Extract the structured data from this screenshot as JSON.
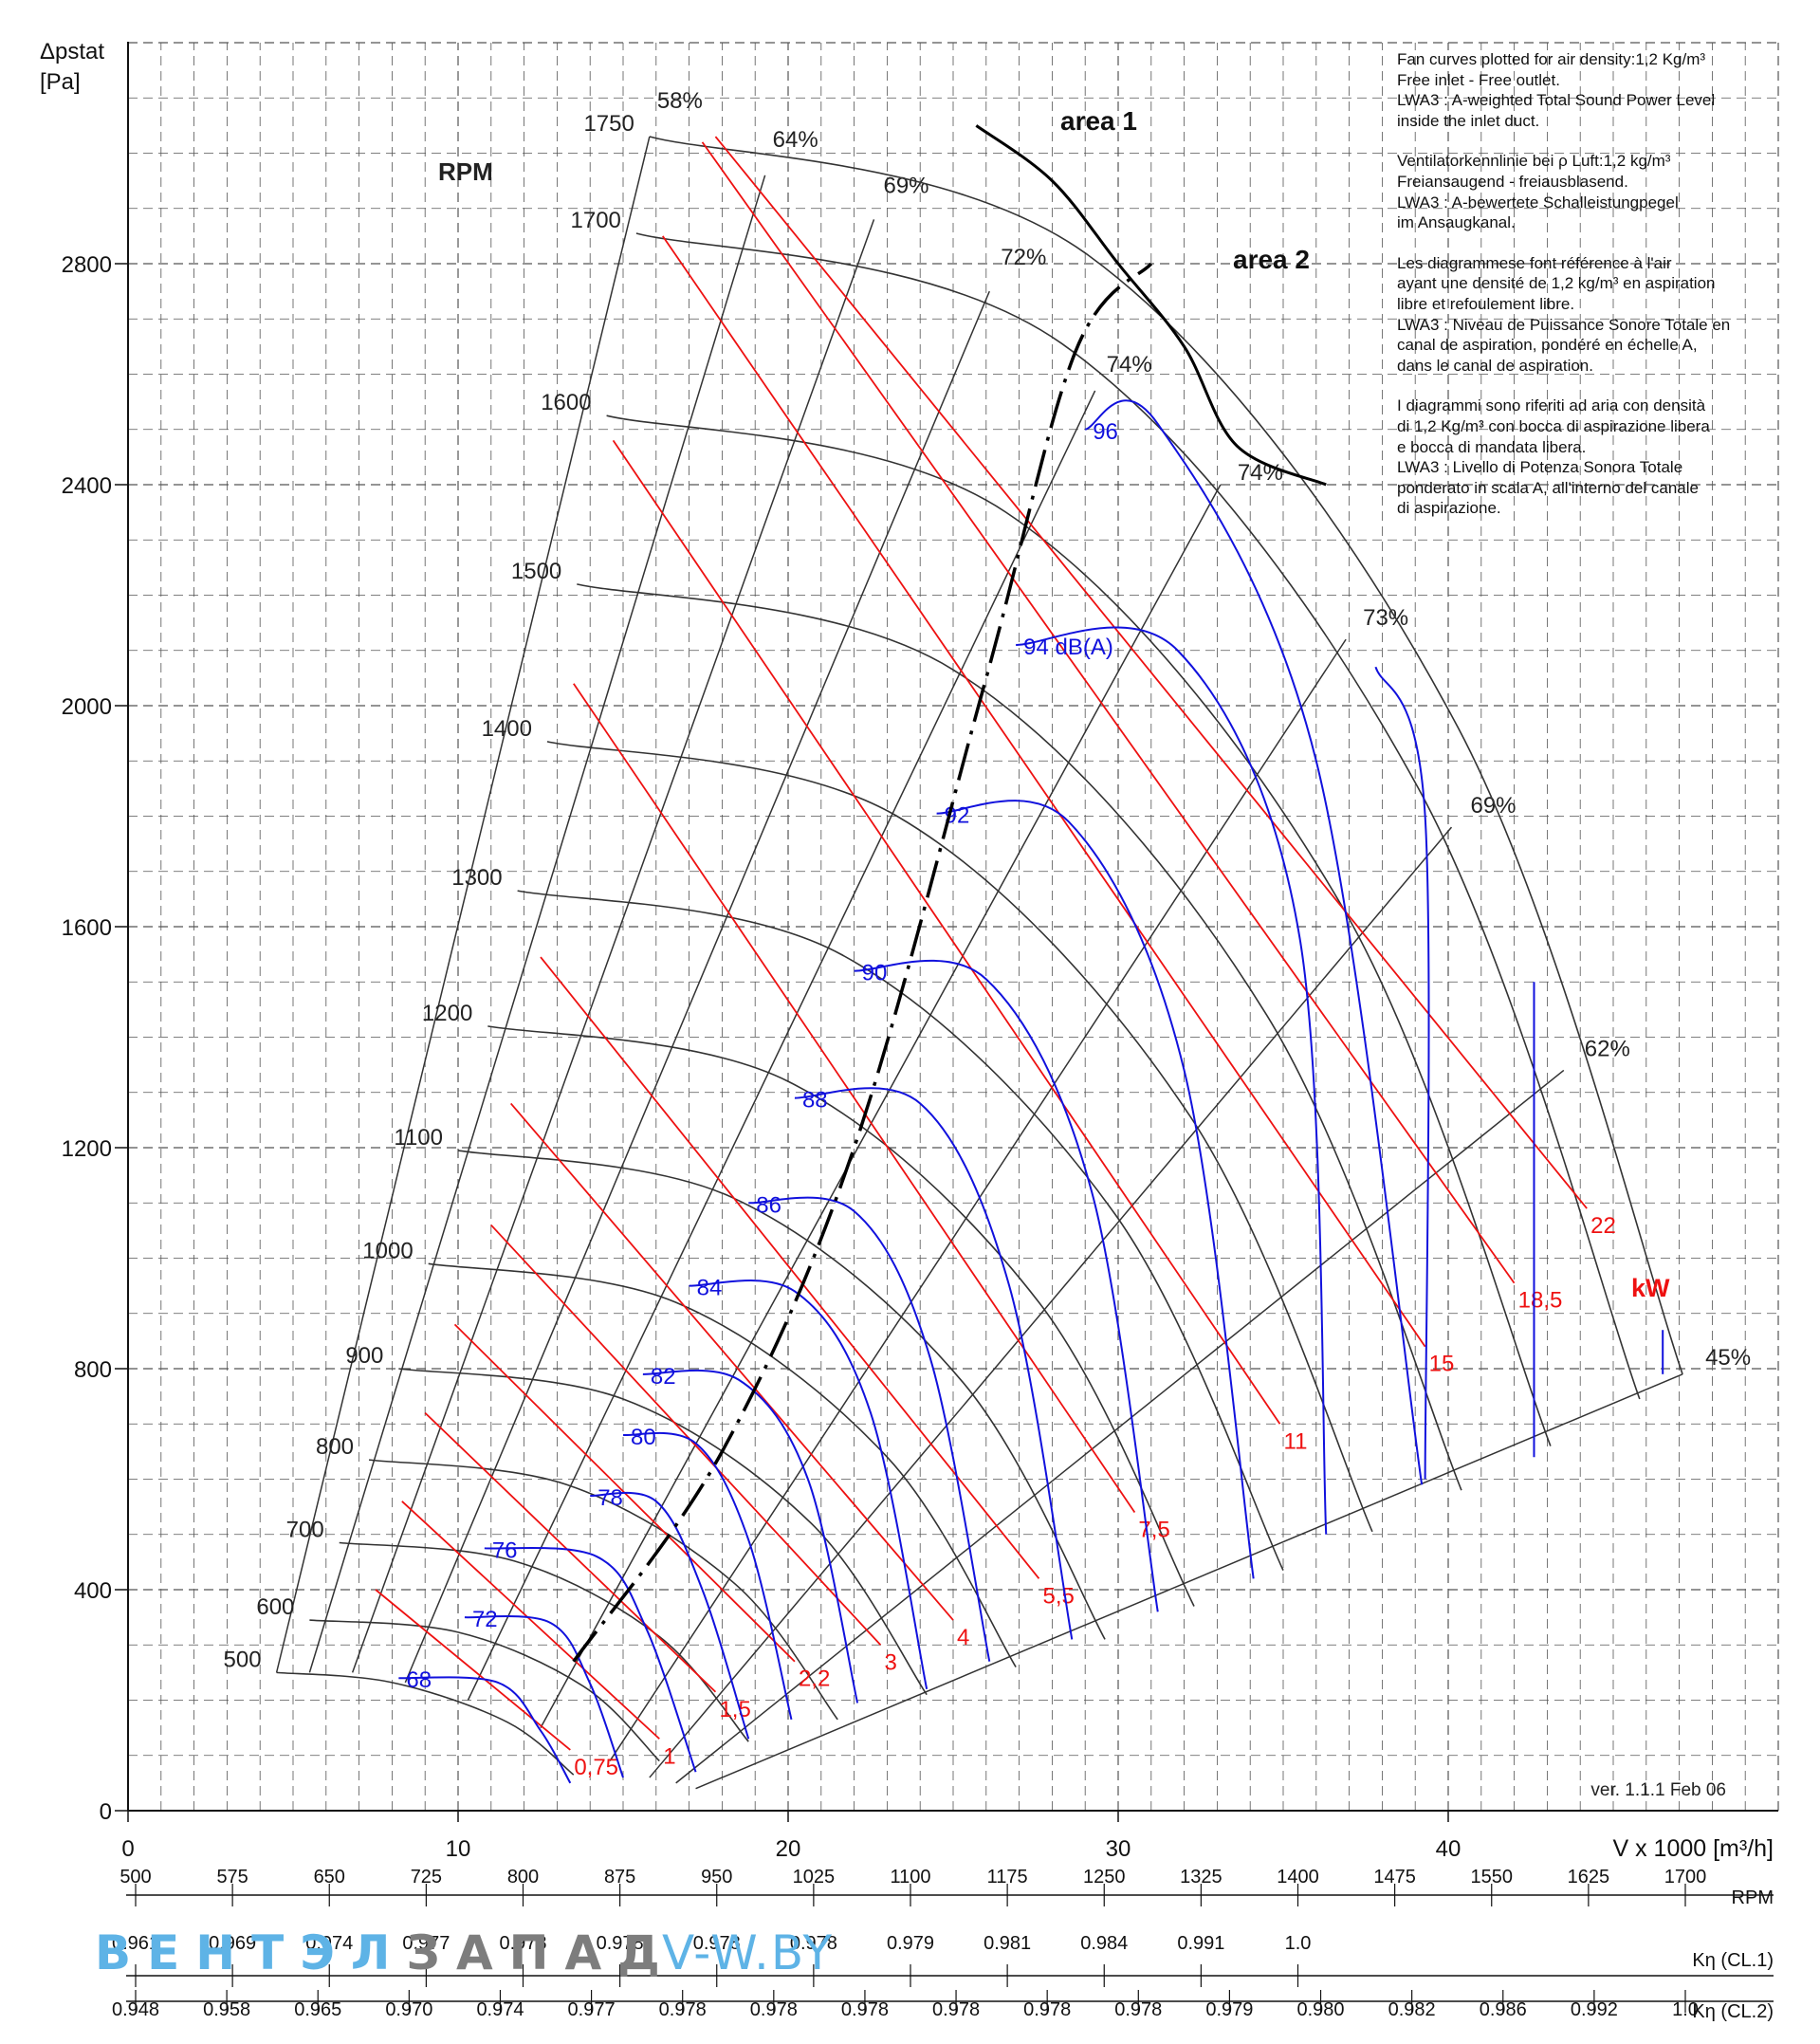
{
  "chart_data": {
    "type": "line",
    "ylabel_lines": [
      "Δpstat",
      "[Pa]"
    ],
    "xlabel": "V x 1000 [m³/h]",
    "xlim": [
      0,
      50
    ],
    "ylim": [
      0,
      3200
    ],
    "x_ticks": [
      0,
      10,
      20,
      30,
      40
    ],
    "y_ticks": [
      0,
      400,
      800,
      1200,
      1600,
      2000,
      2400,
      2800
    ],
    "grid": true,
    "rpm_header": "RPM",
    "rpm_curves": [
      {
        "rpm": "500",
        "points": [
          [
            4.5,
            250
          ],
          [
            8,
            232
          ],
          [
            11.5,
            160
          ],
          [
            13.5,
            65
          ]
        ]
      },
      {
        "rpm": "600",
        "points": [
          [
            5.5,
            345
          ],
          [
            10,
            323
          ],
          [
            13.8,
            225
          ],
          [
            16.1,
            90
          ]
        ]
      },
      {
        "rpm": "700",
        "points": [
          [
            6.4,
            485
          ],
          [
            11.7,
            452
          ],
          [
            16.1,
            315
          ],
          [
            18.8,
            125
          ]
        ]
      },
      {
        "rpm": "800",
        "points": [
          [
            7.3,
            635
          ],
          [
            13.3,
            590
          ],
          [
            18.4,
            410
          ],
          [
            21.5,
            165
          ]
        ]
      },
      {
        "rpm": "900",
        "points": [
          [
            8.2,
            800
          ],
          [
            15,
            745
          ],
          [
            20.7,
            520
          ],
          [
            24.2,
            210
          ]
        ]
      },
      {
        "rpm": "1000",
        "points": [
          [
            9.1,
            990
          ],
          [
            16.6,
            920
          ],
          [
            23,
            640
          ],
          [
            26.9,
            260
          ]
        ]
      },
      {
        "rpm": "1100",
        "points": [
          [
            10,
            1195
          ],
          [
            18.3,
            1110
          ],
          [
            25.3,
            775
          ],
          [
            29.6,
            310
          ]
        ]
      },
      {
        "rpm": "1200",
        "points": [
          [
            10.9,
            1420
          ],
          [
            20,
            1320
          ],
          [
            27.6,
            920
          ],
          [
            32.3,
            370
          ]
        ]
      },
      {
        "rpm": "1300",
        "points": [
          [
            11.8,
            1665
          ],
          [
            21.6,
            1550
          ],
          [
            29.9,
            1080
          ],
          [
            35,
            435
          ]
        ]
      },
      {
        "rpm": "1400",
        "points": [
          [
            12.7,
            1935
          ],
          [
            23.3,
            1800
          ],
          [
            32.2,
            1255
          ],
          [
            37.7,
            505
          ]
        ]
      },
      {
        "rpm": "1500",
        "points": [
          [
            13.6,
            2220
          ],
          [
            25,
            2065
          ],
          [
            34.5,
            1440
          ],
          [
            40.4,
            580
          ]
        ]
      },
      {
        "rpm": "1600",
        "points": [
          [
            14.5,
            2525
          ],
          [
            26.6,
            2350
          ],
          [
            36.8,
            1635
          ],
          [
            43.1,
            660
          ]
        ]
      },
      {
        "rpm": "1700",
        "points": [
          [
            15.4,
            2855
          ],
          [
            28.3,
            2655
          ],
          [
            39.1,
            1850
          ],
          [
            45.8,
            745
          ]
        ]
      },
      {
        "rpm": "1750",
        "points": [
          [
            15.8,
            3030
          ],
          [
            29.1,
            2815
          ],
          [
            40.3,
            1960
          ],
          [
            47.1,
            790
          ]
        ]
      }
    ],
    "efficiency_lines": [
      {
        "label": "58%",
        "from": [
          4.5,
          250
        ],
        "to": [
          15.8,
          3030
        ]
      },
      {
        "label": "64%",
        "from": [
          5.5,
          250
        ],
        "to": [
          19.3,
          2960
        ]
      },
      {
        "label": "69%",
        "from": [
          6.8,
          250
        ],
        "to": [
          22.6,
          2880
        ]
      },
      {
        "label": "72%",
        "from": [
          8.4,
          232
        ],
        "to": [
          26.1,
          2750
        ]
      },
      {
        "label": "74%",
        "from": [
          10.3,
          200
        ],
        "to": [
          29.3,
          2570
        ]
      },
      {
        "label": "74%",
        "from": [
          12.5,
          150
        ],
        "to": [
          33.1,
          2400
        ]
      },
      {
        "label": "73%",
        "from": [
          14.6,
          90
        ],
        "to": [
          36.9,
          2120
        ]
      },
      {
        "label": "69%",
        "from": [
          15.8,
          60
        ],
        "to": [
          40.1,
          1780
        ]
      },
      {
        "label": "62%",
        "from": [
          16.6,
          50
        ],
        "to": [
          43.5,
          1340
        ]
      },
      {
        "label": "45%",
        "from": [
          17.2,
          40
        ],
        "to": [
          47.1,
          790
        ]
      }
    ],
    "power_lines_kW": {
      "unit": "kW",
      "lines": [
        {
          "label": "0,75",
          "from": [
            7.5,
            400
          ],
          "to": [
            13.4,
            110
          ]
        },
        {
          "label": "1",
          "from": [
            8.3,
            560
          ],
          "to": [
            16.1,
            130
          ]
        },
        {
          "label": "1,5",
          "from": [
            9,
            720
          ],
          "to": [
            17.8,
            215
          ]
        },
        {
          "label": "2,2",
          "from": [
            9.9,
            880
          ],
          "to": [
            20.2,
            270
          ]
        },
        {
          "label": "3",
          "from": [
            11,
            1060
          ],
          "to": [
            22.8,
            300
          ]
        },
        {
          "label": "4",
          "from": [
            11.6,
            1280
          ],
          "to": [
            25,
            345
          ]
        },
        {
          "label": "5,5",
          "from": [
            12.5,
            1545
          ],
          "to": [
            27.6,
            420
          ]
        },
        {
          "label": "7,5",
          "from": [
            13.5,
            2040
          ],
          "to": [
            30.5,
            540
          ]
        },
        {
          "label": "11",
          "from": [
            14.7,
            2480
          ],
          "to": [
            34.9,
            700
          ]
        },
        {
          "label": "15",
          "from": [
            16.2,
            2850
          ],
          "to": [
            39.3,
            840
          ]
        },
        {
          "label": "18,5",
          "from": [
            17.4,
            3020
          ],
          "to": [
            42,
            955
          ]
        },
        {
          "label": "22",
          "from": [
            17.8,
            3030
          ],
          "to": [
            44.2,
            1090
          ]
        }
      ]
    },
    "sound_curves": [
      {
        "label": "68",
        "points": [
          [
            8.2,
            240
          ],
          [
            11.2,
            232
          ],
          [
            12.5,
            145
          ],
          [
            13.4,
            50
          ]
        ]
      },
      {
        "label": "72",
        "points": [
          [
            10.2,
            350
          ],
          [
            12.8,
            340
          ],
          [
            14,
            230
          ],
          [
            15,
            60
          ]
        ]
      },
      {
        "label": "76",
        "points": [
          [
            10.8,
            475
          ],
          [
            14.2,
            460
          ],
          [
            15.7,
            330
          ],
          [
            17.2,
            70
          ]
        ]
      },
      {
        "label": "78",
        "points": [
          [
            14,
            570
          ],
          [
            16,
            560
          ],
          [
            17.4,
            400
          ],
          [
            18.8,
            130
          ]
        ]
      },
      {
        "label": "80",
        "points": [
          [
            15,
            680
          ],
          [
            17.2,
            665
          ],
          [
            18.8,
            490
          ],
          [
            20.1,
            165
          ]
        ]
      },
      {
        "label": "82",
        "points": [
          [
            15.6,
            790
          ],
          [
            18.5,
            780
          ],
          [
            20.6,
            600
          ],
          [
            22.1,
            195
          ]
        ]
      },
      {
        "label": "84",
        "points": [
          [
            17,
            950
          ],
          [
            20.2,
            940
          ],
          [
            22.5,
            720
          ],
          [
            24.2,
            220
          ]
        ]
      },
      {
        "label": "86",
        "points": [
          [
            18.8,
            1100
          ],
          [
            22,
            1085
          ],
          [
            24.3,
            820
          ],
          [
            26.1,
            270
          ]
        ]
      },
      {
        "label": "88",
        "points": [
          [
            20.2,
            1290
          ],
          [
            24,
            1280
          ],
          [
            26.7,
            950
          ],
          [
            28.6,
            310
          ]
        ]
      },
      {
        "label": "90",
        "points": [
          [
            22,
            1520
          ],
          [
            26,
            1505
          ],
          [
            29.2,
            1120
          ],
          [
            31.2,
            360
          ]
        ]
      },
      {
        "label": "92",
        "points": [
          [
            24.5,
            1805
          ],
          [
            28.5,
            1790
          ],
          [
            32,
            1340
          ],
          [
            34.1,
            420
          ]
        ]
      },
      {
        "label": "94 dB(A)",
        "points": [
          [
            26.9,
            2110
          ],
          [
            31.8,
            2100
          ],
          [
            35.5,
            1580
          ],
          [
            36.3,
            500
          ]
        ]
      },
      {
        "label": "96",
        "points": [
          [
            29,
            2500
          ],
          [
            31.2,
            2510
          ],
          [
            36,
            1900
          ],
          [
            39.2,
            590
          ]
        ]
      },
      {
        "label": "",
        "points": [
          [
            37.8,
            2070
          ],
          [
            39.3,
            1800
          ],
          [
            39.3,
            600
          ]
        ]
      },
      {
        "label": "",
        "points": [
          [
            42.6,
            1500
          ],
          [
            42.6,
            640
          ]
        ]
      },
      {
        "label": "",
        "points": [
          [
            46.5,
            870
          ],
          [
            46.5,
            790
          ]
        ]
      }
    ],
    "area_boundary": {
      "labels": [
        "area 1",
        "area 2"
      ],
      "points": [
        [
          13.5,
          270
        ],
        [
          18,
          650
        ],
        [
          22,
          1200
        ],
        [
          26,
          2050
        ],
        [
          28.7,
          2640
        ],
        [
          31,
          2800
        ]
      ]
    },
    "area_arc": {
      "points": [
        [
          25.7,
          3050
        ],
        [
          28,
          2950
        ],
        [
          30,
          2800
        ],
        [
          32,
          2650
        ],
        [
          33.6,
          2470
        ],
        [
          36.3,
          2400
        ]
      ]
    },
    "annotations": [
      "ver. 1.1.1 Feb 06"
    ],
    "notes": [
      "Fan curves plotted for air density:1,2 Kg/m³\nFree inlet - Free outlet.\nLWA3 : A-weighted Total Sound Power Level\ninside the inlet duct.",
      "Ventilatorkennlinie bei ρ Luft:1,2 kg/m³\nFreiansaugend - freiausblasend.\nLWA3 : A-bewertete Schalleistungpegel\nim Ansaugkanal.",
      "Les diagrammese font référence à l'air\nayant une densité de 1,2 kg/m³ en aspiration\nlibre et refoulement libre.\nLWA3 : Niveau de Puissance Sonore Totale en\ncanal de aspiration, pondéré en échelle A,\ndans le canal de aspiration.",
      "I diagrammi sono riferiti ad aria con densità\ndi 1,2 Kg/m³ con bocca di aspirazione libera\ne bocca di mandata libera.\nLWA3 : Livello di Potenza Sonora Totale\nponderato in scala A, all'interno del canale\ndi aspirazione."
    ],
    "bottom_scales": [
      {
        "name": "RPM",
        "values": [
          "500",
          "575",
          "650",
          "725",
          "800",
          "875",
          "950",
          "1025",
          "1100",
          "1175",
          "1250",
          "1325",
          "1400",
          "1475",
          "1550",
          "1625",
          "1700"
        ]
      },
      {
        "name": "Kη (CL.1)",
        "values": [
          "0.961",
          "0.969",
          "0.974",
          "0.977",
          "0.978",
          "0.978",
          "0.978",
          "0.978",
          "0.979",
          "0.981",
          "0.984",
          "0.991",
          "1.0"
        ]
      },
      {
        "name": "Kη (CL.2)",
        "values": [
          "0.948",
          "0.958",
          "0.965",
          "0.970",
          "0.974",
          "0.977",
          "0.978",
          "0.978",
          "0.978",
          "0.978",
          "0.978",
          "0.978",
          "0.979",
          "0.980",
          "0.982",
          "0.986",
          "0.992",
          "1.0"
        ]
      }
    ]
  },
  "watermark": {
    "part1": "ВЕНТЭЛ",
    "part2": "ЗАПАД",
    "site": "V-W.BY"
  },
  "colors": {
    "grid": "#555555",
    "rpm": "#333333",
    "efficiency": "#333333",
    "power": "#ee1111",
    "sound": "#1111dd",
    "boundary": "#000000"
  }
}
